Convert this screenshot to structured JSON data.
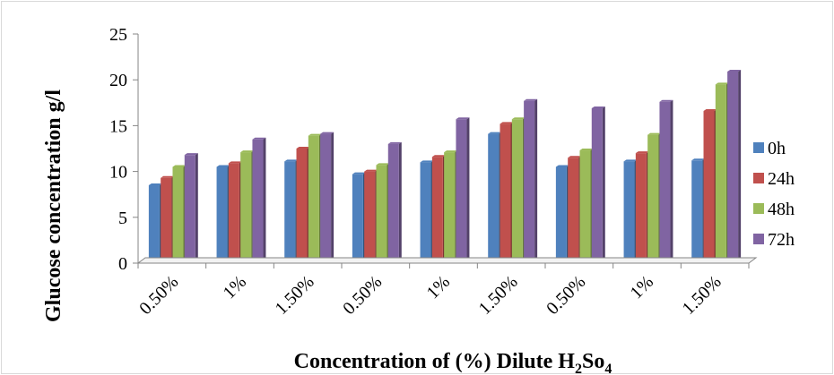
{
  "chart_data": {
    "type": "bar",
    "title": "",
    "xlabel": {
      "prefix": "Concentration of (%) Dilute H",
      "sub1": "2",
      "middle": "So",
      "sub2": "4"
    },
    "ylabel": "Glucose concentration g/l",
    "ylim": [
      0,
      25
    ],
    "yticks": [
      "0",
      "5",
      "10",
      "15",
      "20",
      "25"
    ],
    "grid": false,
    "legend_position": "right",
    "categories": [
      "0.50%",
      "1%",
      "1.50%",
      "0.50%",
      "1%",
      "1.50%",
      "0.50%",
      "1%",
      "1.50%"
    ],
    "series": [
      {
        "name": "0h",
        "color": "#4f81bd",
        "values": [
          8.5,
          10.5,
          11.1,
          9.7,
          11.0,
          14.1,
          10.5,
          11.1,
          11.2
        ]
      },
      {
        "name": "24h",
        "color": "#c0504d",
        "values": [
          9.3,
          10.9,
          12.5,
          10.0,
          11.6,
          15.2,
          11.5,
          12.0,
          16.6
        ]
      },
      {
        "name": "48h",
        "color": "#9bbb59",
        "values": [
          10.5,
          12.1,
          13.9,
          10.7,
          12.1,
          15.7,
          12.3,
          14.0,
          19.5
        ]
      },
      {
        "name": "72h",
        "color": "#8064a2",
        "values": [
          11.8,
          13.5,
          14.1,
          13.0,
          15.7,
          17.7,
          16.9,
          17.6,
          20.9
        ]
      }
    ]
  }
}
